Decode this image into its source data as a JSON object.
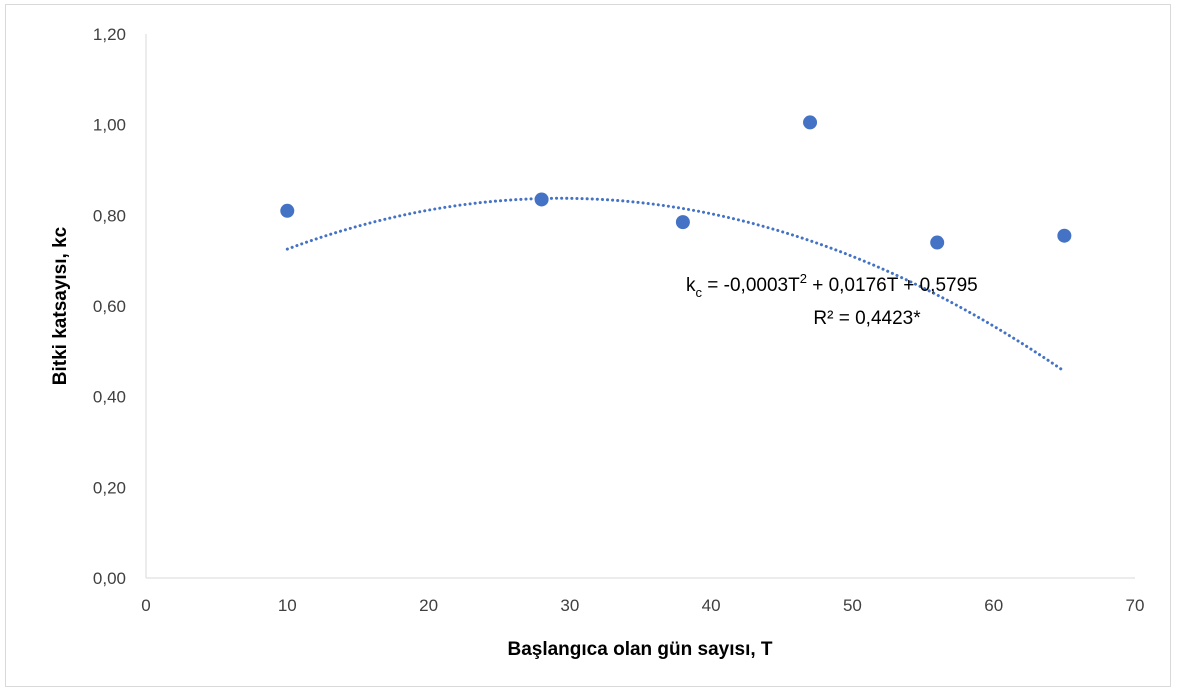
{
  "chart_data": {
    "type": "scatter",
    "title": "",
    "xlabel": "Başlangıca olan gün sayısı, T",
    "ylabel": "Bitki katsayısı, kc",
    "xlim": [
      0,
      70
    ],
    "ylim": [
      0,
      1.2
    ],
    "x_ticks": [
      "0",
      "10",
      "20",
      "30",
      "40",
      "50",
      "60",
      "70"
    ],
    "y_ticks": [
      "0,00",
      "0,20",
      "0,40",
      "0,60",
      "0,80",
      "1,00",
      "1,20"
    ],
    "grid": false,
    "legend": "none",
    "series": [
      {
        "x": [
          10,
          28,
          38,
          47,
          56,
          65
        ],
        "y": [
          0.81,
          0.835,
          0.785,
          1.005,
          0.74,
          0.755
        ],
        "color": "#4472C4"
      }
    ],
    "trendline": {
      "type": "polynomial",
      "order": 2,
      "coefficients": {
        "a": -0.0003,
        "b": 0.0176,
        "c": 0.5795
      },
      "color": "#4472C4",
      "style": "dotted"
    },
    "annotation": {
      "equation_base": "k",
      "equation_sub": "c",
      "equation_part1": " = -0,0003T",
      "equation_sup": "2",
      "equation_part2": " + 0,0176T + 0,5795",
      "r_squared": "R² = 0,4423*"
    }
  }
}
